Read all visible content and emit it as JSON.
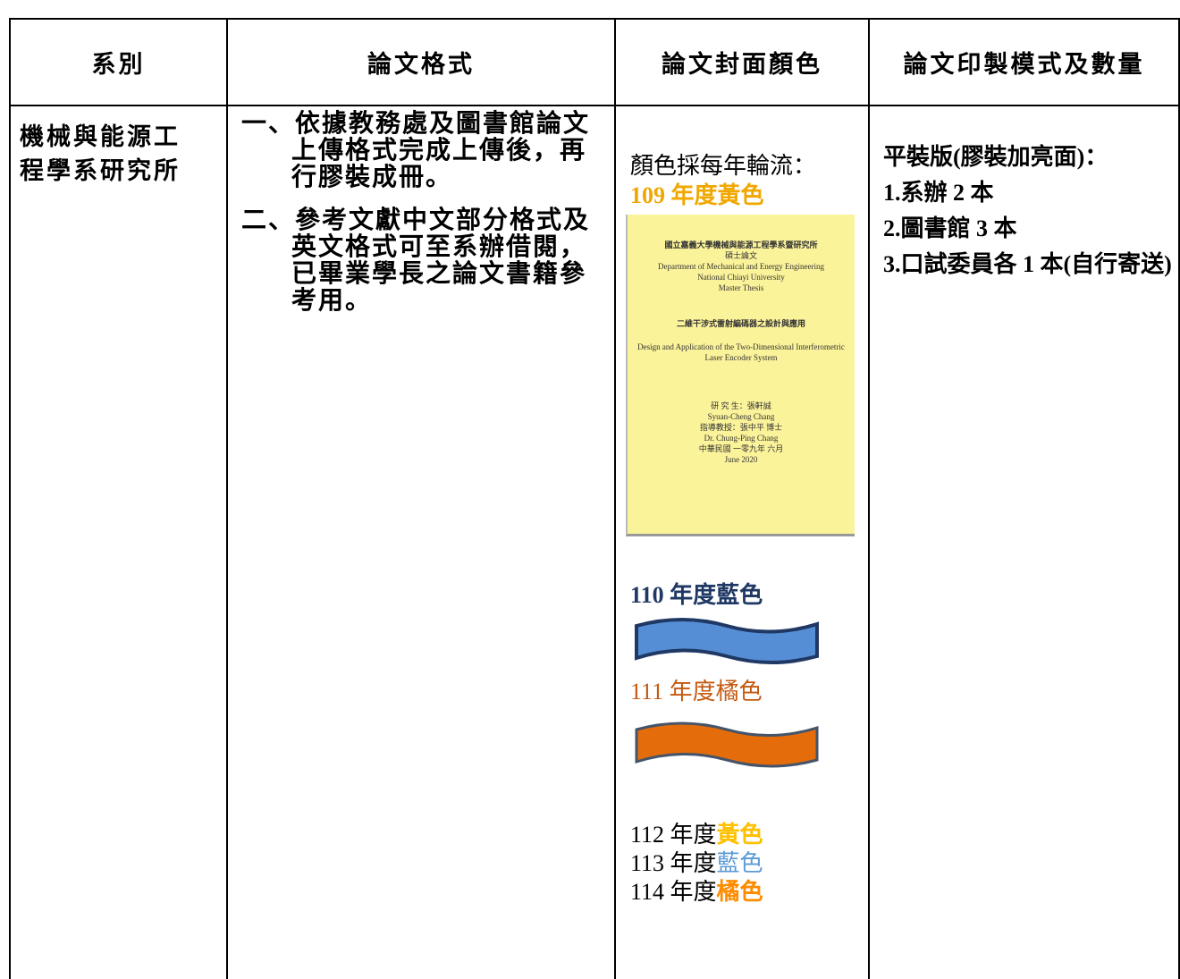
{
  "table": {
    "header": [
      "系別",
      "論文格式",
      "論文封面顏色",
      "論文印製模式及數量"
    ],
    "department": "機械與能源工程學系研究所",
    "format_items": [
      "一、依據教務處及圖書館論文上傳格式完成上傳後，再行膠裝成冊。",
      "二、參考文獻中文部分格式及英文格式可至系辦借閱，已畢業學長之論文書籍參考用。"
    ],
    "cover": {
      "intro": "顏色採每年輪流：",
      "year_109": "109 年度黃色",
      "sample_cover": [
        "國立嘉義大學機械與能源工程學系暨研究所",
        "碩士論文",
        "Department of Mechanical and Energy Engineering",
        "National Chiayi University",
        "Master Thesis",
        "二維干涉式雷射編碼器之設計與應用",
        "Design and Application of the Two-Dimensional Interferometric",
        "Laser Encoder System",
        "研 究 生：張軒誠",
        "Syuan-Cheng Chang",
        "指導教授：張中平 博士",
        "Dr. Chung-Ping Chang",
        "中華民國 一零九年 六月",
        "June 2020"
      ],
      "year_110": "110 年度藍色",
      "year_111": "111 年度橘色",
      "later_years": [
        [
          "112 年度",
          "黃色"
        ],
        [
          "113 年度",
          "藍色"
        ],
        [
          "114 年度",
          "橘色"
        ]
      ]
    },
    "printing": [
      "平裝版(膠裝加亮面)：",
      "1.系辦 2 本",
      "2.圖書館 3 本",
      "3.口試委員各 1 本(自行寄送)"
    ]
  }
}
